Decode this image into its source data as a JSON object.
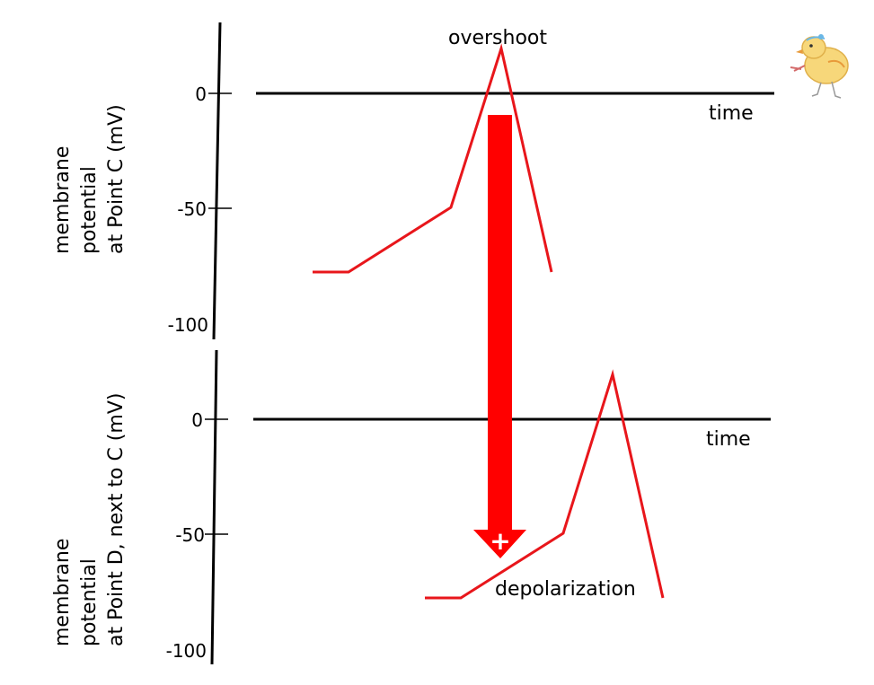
{
  "diagram": {
    "top_panel": {
      "ylabel_lines": [
        "membrane",
        "potential",
        "at Point C (mV)"
      ],
      "ticks": [
        "0",
        "-50",
        "-100"
      ],
      "time_label": "time",
      "annotation": "overshoot",
      "trace_mv": [
        -78,
        -78,
        -50,
        20,
        -78
      ]
    },
    "bottom_panel": {
      "ylabel_lines": [
        "membrane",
        "potential",
        "at Point D, next to C (mV)"
      ],
      "ticks": [
        "0",
        "-50",
        "-100"
      ],
      "time_label": "time",
      "annotation": "depolarization",
      "trace_mv": [
        -78,
        -78,
        -50,
        20,
        -78
      ]
    },
    "arrow": {
      "symbol": "+",
      "color": "#ff0000"
    },
    "colors": {
      "trace": "#e8161b",
      "axis": "#000000"
    },
    "icons": [
      "chick-icon"
    ]
  }
}
